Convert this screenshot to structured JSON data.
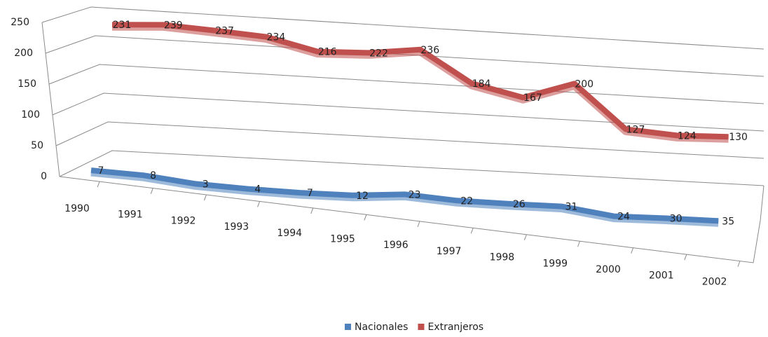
{
  "chart_data": {
    "type": "line",
    "categories": [
      "1990",
      "1991",
      "1992",
      "1993",
      "1994",
      "1995",
      "1996",
      "1997",
      "1998",
      "1999",
      "2000",
      "2001",
      "2002"
    ],
    "series": [
      {
        "name": "Nacionales",
        "color": "#4f81bd",
        "values": [
          7,
          8,
          3,
          4,
          7,
          12,
          23,
          22,
          26,
          31,
          24,
          30,
          35
        ]
      },
      {
        "name": "Extranjeros",
        "color": "#c0504d",
        "values": [
          231,
          239,
          237,
          234,
          216,
          222,
          236,
          184,
          167,
          200,
          127,
          124,
          130
        ]
      }
    ],
    "ylim": [
      0,
      250
    ],
    "yticks": [
      0,
      50,
      100,
      150,
      200,
      250
    ],
    "grid": true,
    "legend": "bottom"
  }
}
